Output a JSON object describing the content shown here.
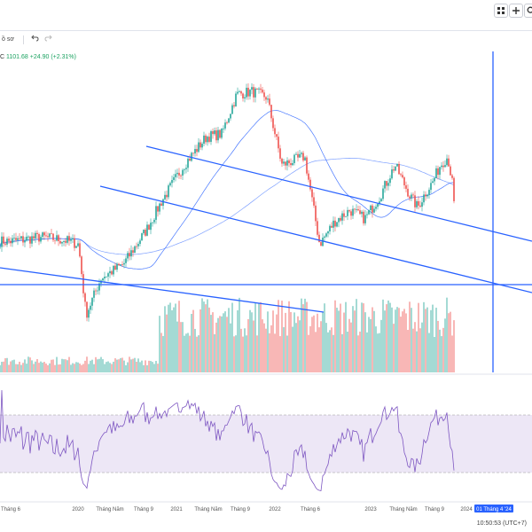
{
  "toolbar": {
    "chart_type_label": "ồ sơ",
    "undo_icon": "undo-icon",
    "redo_icon": "redo-icon",
    "grid_icon": "grid-icon",
    "plus_icon": "plus-icon",
    "search_icon": "search-icon"
  },
  "legend": {
    "symbol": "C",
    "close": "1101.68",
    "change": "+24.90 (+2.31%)"
  },
  "time_readout": "10:50:53 (UTC+7)",
  "colors": {
    "up": "#26a69a",
    "down": "#ef5350",
    "trendline": "#2962ff",
    "ma": "#2962ff",
    "rsi_line": "#7e57c2",
    "rsi_band": "#ede7f6"
  },
  "chart_data": {
    "type": "candlestick",
    "title": "",
    "x_axis": {
      "tick_labels": [
        "Tháng 6",
        "2020",
        "Tháng Năm",
        "Tháng 9",
        "2021",
        "Tháng Năm",
        "Tháng 9",
        "2022",
        "Tháng 6",
        "2023",
        "Tháng Năm",
        "Tháng 9",
        "2024",
        "01 Tháng 4 '24"
      ],
      "cursor_label": "01 Tháng 4 '24",
      "range": [
        "2019-05",
        "2024-05"
      ]
    },
    "last_close": 1101.68,
    "price_path": [
      {
        "x": "2019-05",
        "y": 960
      },
      {
        "x": "2019-09",
        "y": 975
      },
      {
        "x": "2019-12",
        "y": 965
      },
      {
        "x": "2020-02",
        "y": 950
      },
      {
        "x": "2020-03",
        "y": 700
      },
      {
        "x": "2020-05",
        "y": 830
      },
      {
        "x": "2020-08",
        "y": 880
      },
      {
        "x": "2020-11",
        "y": 1000
      },
      {
        "x": "2021-01",
        "y": 1100
      },
      {
        "x": "2021-04",
        "y": 1230
      },
      {
        "x": "2021-07",
        "y": 1330
      },
      {
        "x": "2021-09",
        "y": 1340
      },
      {
        "x": "2021-11",
        "y": 1480
      },
      {
        "x": "2022-01",
        "y": 1490
      },
      {
        "x": "2022-03",
        "y": 1470
      },
      {
        "x": "2022-05",
        "y": 1230
      },
      {
        "x": "2022-08",
        "y": 1260
      },
      {
        "x": "2022-10",
        "y": 950
      },
      {
        "x": "2022-12",
        "y": 1030
      },
      {
        "x": "2023-02",
        "y": 1070
      },
      {
        "x": "2023-04",
        "y": 1040
      },
      {
        "x": "2023-06",
        "y": 1120
      },
      {
        "x": "2023-08",
        "y": 1230
      },
      {
        "x": "2023-10",
        "y": 1120
      },
      {
        "x": "2023-11",
        "y": 1080
      },
      {
        "x": "2023-12",
        "y": 1130
      },
      {
        "x": "2024-01",
        "y": 1170
      },
      {
        "x": "2024-02",
        "y": 1230
      },
      {
        "x": "2024-03",
        "y": 1260
      },
      {
        "x": "2024-04",
        "y": 1101.68
      }
    ],
    "indicators": {
      "moving_average_long": true,
      "moving_average_short": true,
      "volume": true,
      "rsi": true
    },
    "trendlines": 4,
    "rsi_band": [
      30,
      70
    ],
    "grid": false,
    "legend": "top-left"
  }
}
